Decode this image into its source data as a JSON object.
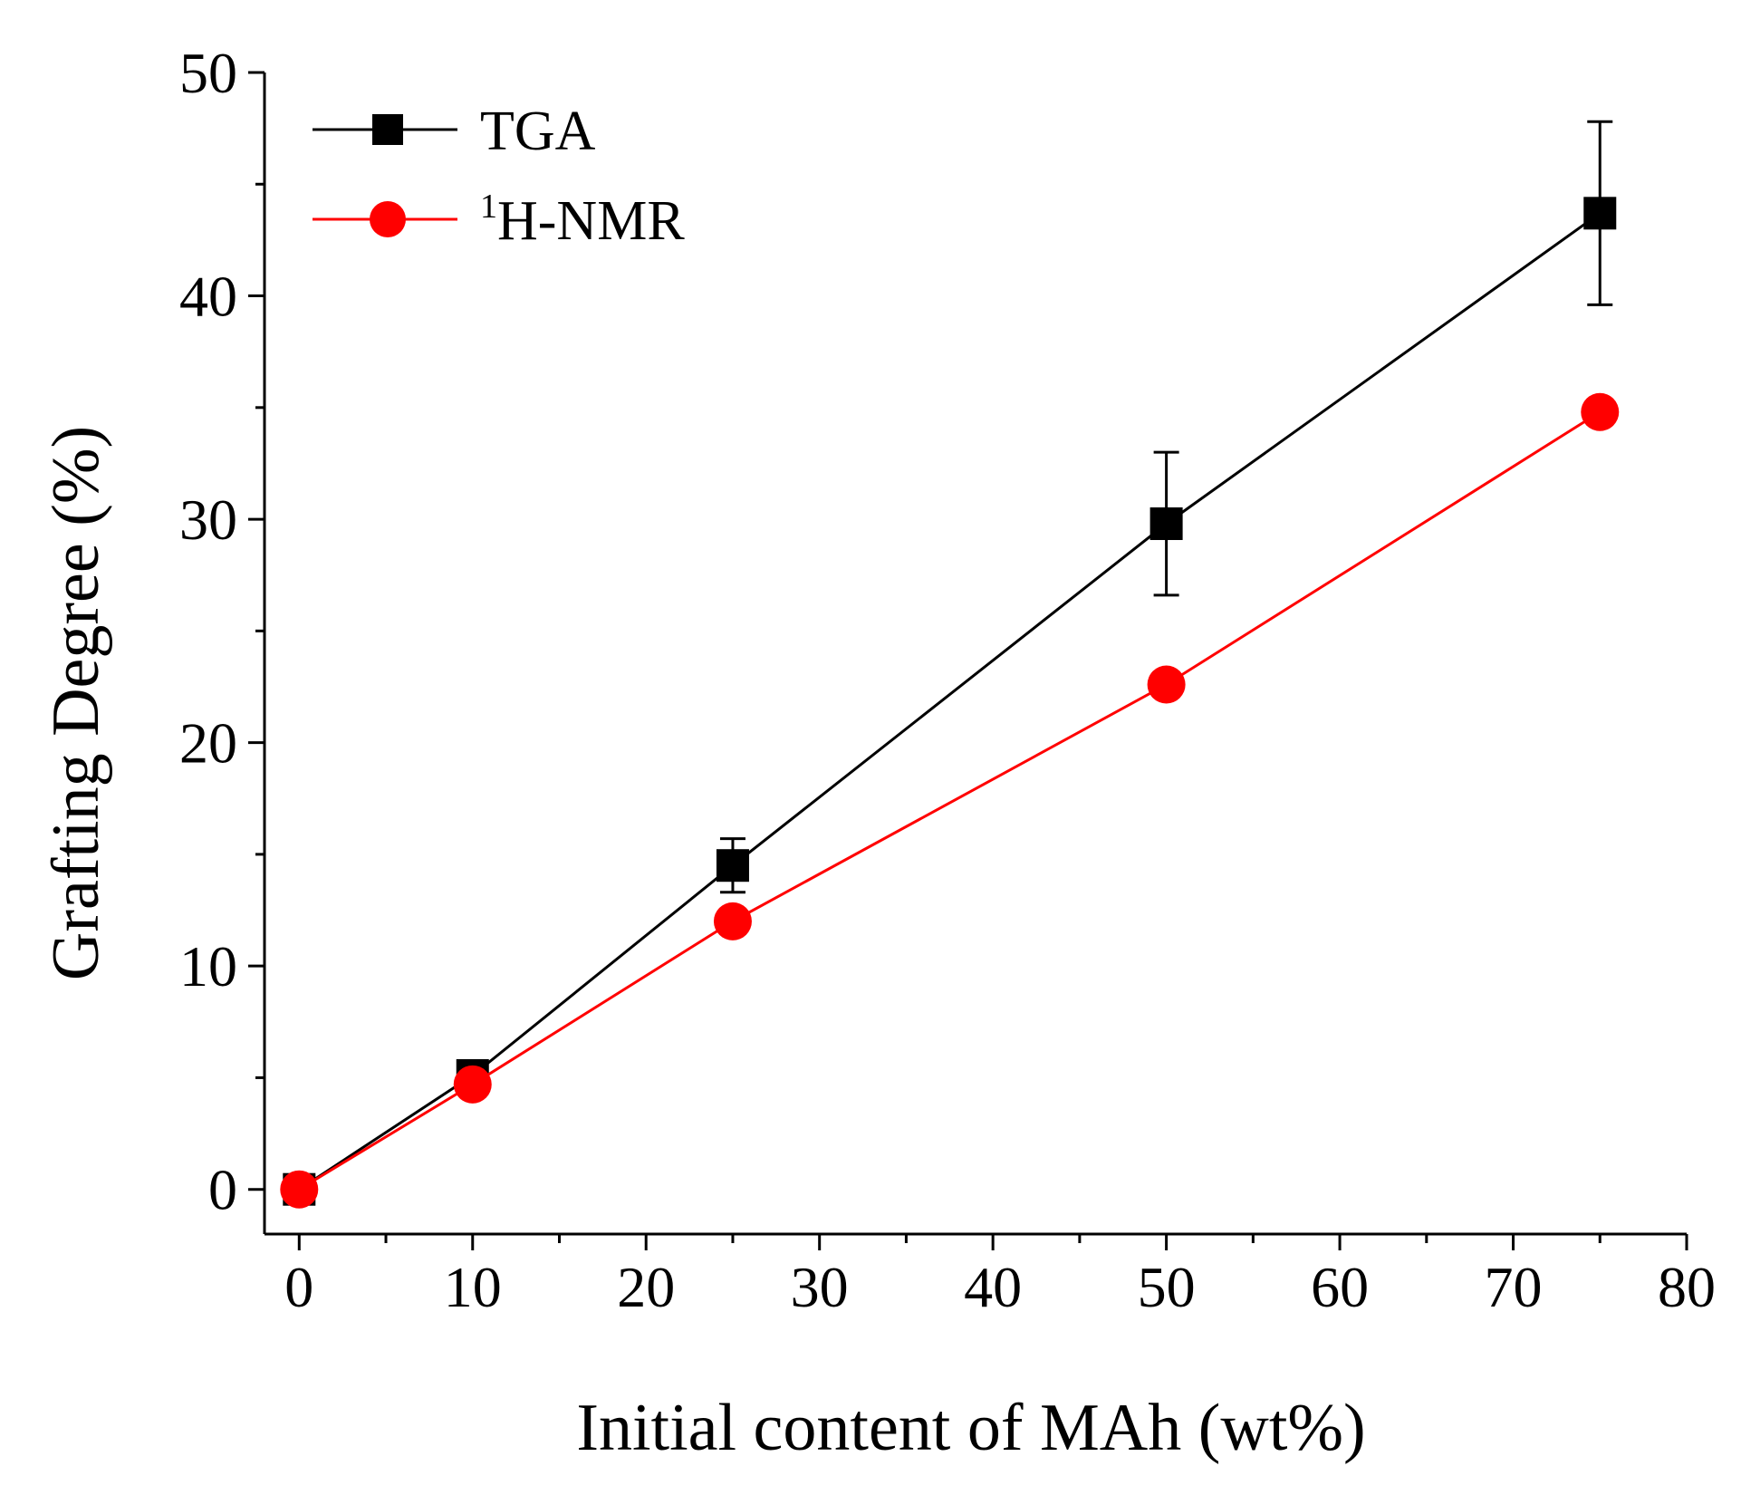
{
  "chart_data": {
    "type": "line",
    "title": "",
    "xlabel": "Initial content of MAh (wt%)",
    "ylabel": "Grafting Degree (%)",
    "xlim": [
      -2,
      80
    ],
    "ylim": [
      -2,
      50
    ],
    "xticks": [
      0,
      10,
      20,
      30,
      40,
      50,
      60,
      70,
      80
    ],
    "yticks": [
      0,
      10,
      20,
      30,
      40,
      50
    ],
    "x_minor_step": 5,
    "y_minor_step": 5,
    "grid": false,
    "legend_position": "top-left",
    "series": [
      {
        "name": "TGA",
        "name_sup": "",
        "name_main": "TGA",
        "marker": "square",
        "color": "#000000",
        "x": [
          0,
          10,
          25,
          50,
          75
        ],
        "values": [
          0,
          5.1,
          14.5,
          29.8,
          43.7
        ],
        "errors": [
          0,
          0,
          1.2,
          3.2,
          4.1
        ]
      },
      {
        "name": "1H-NMR",
        "name_sup": "1",
        "name_main": "H-NMR",
        "marker": "circle",
        "color": "#ff0000",
        "x": [
          0,
          10,
          25,
          50,
          75
        ],
        "values": [
          0,
          4.7,
          12.0,
          22.6,
          34.8
        ],
        "errors": [
          0,
          0,
          0,
          0,
          0
        ]
      }
    ]
  }
}
